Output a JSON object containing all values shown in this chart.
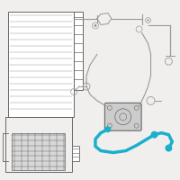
{
  "bg_color": "#f0efed",
  "highlight_color": "#1ab0cc",
  "line_color": "#999999",
  "dark_line": "#666666",
  "border_color": "#dddddd"
}
